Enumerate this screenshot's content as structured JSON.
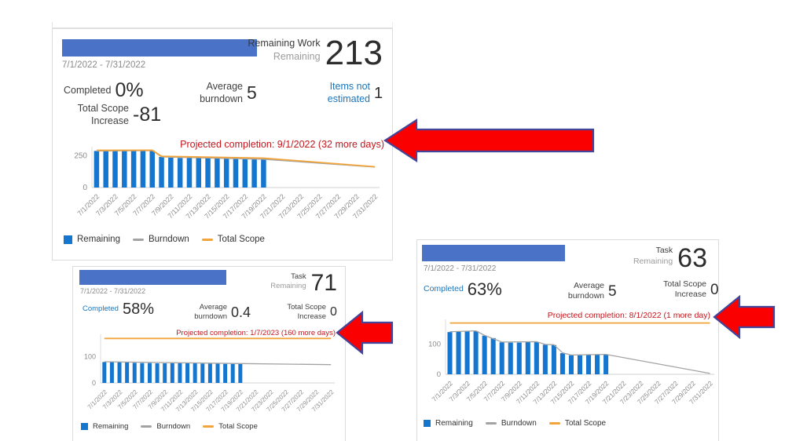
{
  "colors": {
    "progress_bar": "#4a73c8",
    "bar": "#1576cf",
    "burndown": "#a3a3a3",
    "total_scope": "#f2a43a",
    "projected_text": "#c4161c",
    "link_blue": "#1b75bb",
    "arrow_fill": "#fb0000",
    "arrow_stroke": "#42459a"
  },
  "widgets": [
    {
      "date_range": "7/1/2022 - 7/31/2022",
      "metric": {
        "title": "Remaining Work",
        "subtitle": "Remaining",
        "value": "213"
      },
      "stats": {
        "completed": {
          "label": "Completed",
          "value": "0%"
        },
        "average": {
          "label": "Average burndown",
          "value": "5"
        },
        "items": {
          "label": "Items not estimated",
          "value": "1"
        },
        "scope": {
          "label": "Total Scope Increase",
          "value": "-81"
        }
      },
      "projected": "Projected completion: 9/1/2022 (32 more days)",
      "legend": [
        {
          "label": "Remaining"
        },
        {
          "label": "Burndown"
        },
        {
          "label": "Total Scope"
        }
      ],
      "chart_data": {
        "type": "bar",
        "days": 31,
        "y_max": 320,
        "y_ticks": [
          0,
          250
        ],
        "x_tick_days": [
          1,
          3,
          5,
          7,
          9,
          11,
          13,
          15,
          17,
          19,
          21,
          23,
          25,
          27,
          29,
          31
        ],
        "x_tick_labels": [
          "7/1/2022",
          "7/3/2022",
          "7/5/2022",
          "7/7/2022",
          "7/9/2022",
          "7/11/2022",
          "7/13/2022",
          "7/15/2022",
          "7/17/2022",
          "7/19/2022",
          "7/21/2022",
          "7/23/2022",
          "7/25/2022",
          "7/27/2022",
          "7/29/2022",
          "7/31/2022"
        ],
        "bar_series": {
          "name": "Remaining",
          "start_day": 1,
          "values": [
            287,
            287,
            287,
            287,
            287,
            287,
            290,
            240,
            234,
            232,
            232,
            232,
            231,
            230,
            229,
            228,
            226,
            224,
            222
          ]
        },
        "line_series": [
          {
            "name": "Burndown",
            "color_key": "burndown",
            "points": [
              [
                1,
                287
              ],
              [
                7,
                290
              ],
              [
                8,
                240
              ],
              [
                19,
                222
              ],
              [
                31,
                160
              ]
            ]
          },
          {
            "name": "Total Scope",
            "color_key": "total_scope",
            "points": [
              [
                1,
                292
              ],
              [
                7,
                293
              ],
              [
                8,
                245
              ],
              [
                19,
                231
              ],
              [
                31,
                163
              ]
            ]
          }
        ]
      }
    },
    {
      "date_range": "7/1/2022 - 7/31/2022",
      "metric": {
        "title": "Task",
        "subtitle": "Remaining",
        "value": "71"
      },
      "stats": {
        "completed": {
          "label": "Completed",
          "value": "58%"
        },
        "average": {
          "label": "Average burndown",
          "value": "0.4"
        },
        "scope": {
          "label": "Total Scope Increase",
          "value": "0"
        }
      },
      "projected": "Projected completion: 1/7/2023 (160 more days)",
      "legend": [
        {
          "label": "Remaining"
        },
        {
          "label": "Burndown"
        },
        {
          "label": "Total Scope"
        }
      ],
      "chart_data": {
        "type": "bar",
        "days": 31,
        "y_max": 186,
        "y_ticks": [
          0,
          100
        ],
        "x_tick_days": [
          1,
          3,
          5,
          7,
          9,
          11,
          13,
          15,
          17,
          19,
          21,
          23,
          25,
          27,
          29,
          31
        ],
        "x_tick_labels": [
          "7/1/2022",
          "7/3/2022",
          "7/5/2022",
          "7/7/2022",
          "7/9/2022",
          "7/11/2022",
          "7/13/2022",
          "7/15/2022",
          "7/17/2022",
          "7/19/2022",
          "7/21/2022",
          "7/23/2022",
          "7/25/2022",
          "7/27/2022",
          "7/29/2022",
          "7/31/2022"
        ],
        "bar_series": {
          "name": "Remaining",
          "start_day": 1,
          "values": [
            80,
            80,
            81,
            80,
            77,
            76,
            76,
            75,
            75,
            76,
            76,
            75,
            75,
            74,
            74,
            74,
            73,
            73,
            73
          ]
        },
        "line_series": [
          {
            "name": "Burndown",
            "color_key": "burndown",
            "points": [
              [
                1,
                81
              ],
              [
                19,
                74
              ],
              [
                31,
                70
              ]
            ]
          },
          {
            "name": "Total Scope",
            "color_key": "total_scope",
            "points": [
              [
                1,
                170
              ],
              [
                31,
                170
              ]
            ]
          }
        ]
      }
    },
    {
      "date_range": "7/1/2022 - 7/31/2022",
      "metric": {
        "title": "Task",
        "subtitle": "Remaining",
        "value": "63"
      },
      "stats": {
        "completed": {
          "label": "Completed",
          "value": "63%"
        },
        "average": {
          "label": "Average burndown",
          "value": "5"
        },
        "scope": {
          "label": "Total Scope Increase",
          "value": "0"
        }
      },
      "projected": "Projected completion: 8/1/2022 (1 more day)",
      "legend": [
        {
          "label": "Remaining"
        },
        {
          "label": "Burndown"
        },
        {
          "label": "Total Scope"
        }
      ],
      "chart_data": {
        "type": "bar",
        "days": 31,
        "y_max": 182,
        "y_ticks": [
          0,
          100
        ],
        "x_tick_days": [
          1,
          3,
          5,
          7,
          9,
          11,
          13,
          15,
          17,
          19,
          21,
          23,
          25,
          27,
          29,
          31
        ],
        "x_tick_labels": [
          "7/1/2022",
          "7/3/2022",
          "7/5/2022",
          "7/7/2022",
          "7/9/2022",
          "7/11/2022",
          "7/13/2022",
          "7/15/2022",
          "7/17/2022",
          "7/19/2022",
          "7/21/2022",
          "7/23/2022",
          "7/25/2022",
          "7/27/2022",
          "7/29/2022",
          "7/31/2022"
        ],
        "bar_series": {
          "name": "Remaining",
          "start_day": 1,
          "values": [
            140,
            141,
            143,
            143,
            128,
            120,
            106,
            105,
            105,
            107,
            107,
            98,
            97,
            70,
            63,
            63,
            64,
            65,
            65
          ]
        },
        "line_series": [
          {
            "name": "Burndown",
            "color_key": "burndown",
            "points": [
              [
                1,
                141
              ],
              [
                4,
                144
              ],
              [
                5,
                129
              ],
              [
                7,
                107
              ],
              [
                11,
                108
              ],
              [
                12,
                99
              ],
              [
                13,
                98
              ],
              [
                14,
                71
              ],
              [
                15,
                64
              ],
              [
                19,
                66
              ],
              [
                31,
                3
              ]
            ]
          },
          {
            "name": "Total Scope",
            "color_key": "total_scope",
            "points": [
              [
                1,
                170
              ],
              [
                31,
                170
              ]
            ]
          }
        ]
      }
    }
  ]
}
